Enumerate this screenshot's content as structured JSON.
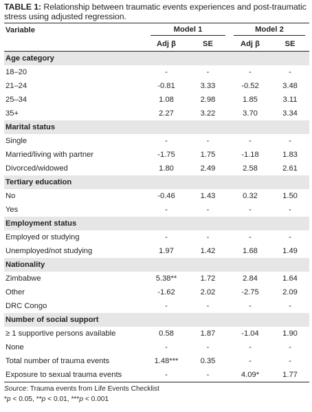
{
  "caption": {
    "label": "TABLE 1:",
    "text": " Relationship between traumatic events experiences and post-traumatic stress using adjusted regression."
  },
  "header": {
    "variable": "Variable",
    "model1": "Model 1",
    "model2": "Model 2",
    "adj_beta": "Adj β",
    "se": "SE"
  },
  "sections": [
    {
      "title": "Age category",
      "rows": [
        [
          "18–20",
          "-",
          "-",
          "-",
          "-"
        ],
        [
          "21–24",
          "-0.81",
          "3.33",
          "-0.52",
          "3.48"
        ],
        [
          "25–34",
          "1.08",
          "2.98",
          "1.85",
          "3.11"
        ],
        [
          "35+",
          "2.27",
          "3.22",
          "3.70",
          "3.34"
        ]
      ]
    },
    {
      "title": "Marital status",
      "rows": [
        [
          "Single",
          "-",
          "-",
          "-",
          "-"
        ],
        [
          "Married/living with partner",
          "-1.75",
          "1.75",
          "-1.18",
          "1.83"
        ],
        [
          "Divorced/widowed",
          "1.80",
          "2.49",
          "2.58",
          "2.61"
        ]
      ]
    },
    {
      "title": "Tertiary education",
      "rows": [
        [
          "No",
          "-0.46",
          "1.43",
          "0.32",
          "1.50"
        ],
        [
          "Yes",
          "-",
          "-",
          "-",
          "-"
        ]
      ]
    },
    {
      "title": "Employment status",
      "rows": [
        [
          "Employed or studying",
          "-",
          "-",
          "-",
          "-"
        ],
        [
          "Unemployed/not studying",
          "1.97",
          "1.42",
          "1.68",
          "1.49"
        ]
      ]
    },
    {
      "title": "Nationality",
      "rows": [
        [
          "Zimbabwe",
          "5.38**",
          "1.72",
          "2.84",
          "1.64"
        ],
        [
          "Other",
          "-1.62",
          "2.02",
          "-2.75",
          "2.09"
        ],
        [
          "DRC Congo",
          "-",
          "-",
          "-",
          "-"
        ]
      ]
    },
    {
      "title": "Number of social support",
      "rows": [
        [
          "≥ 1 supportive persons available",
          "0.58",
          "1.87",
          "-1.04",
          "1.90"
        ],
        [
          "None",
          "-",
          "-",
          "-",
          "-"
        ],
        [
          "Total number of trauma events",
          "1.48***",
          "0.35",
          "-",
          "-"
        ],
        [
          "Exposure to sexual trauma events",
          "-",
          "-",
          "4.09*",
          "1.77"
        ]
      ]
    }
  ],
  "notes": {
    "source_label": "Source",
    "source_text": ": Trauma events from Life Events Checklist",
    "p1_sym": "*",
    "p1_p": "p",
    "p1_rest": " < 0.05, **",
    "p2_p": "p",
    "p2_rest": " < 0.01, ***",
    "p3_p": "p",
    "p3_rest": " < 0.001"
  }
}
